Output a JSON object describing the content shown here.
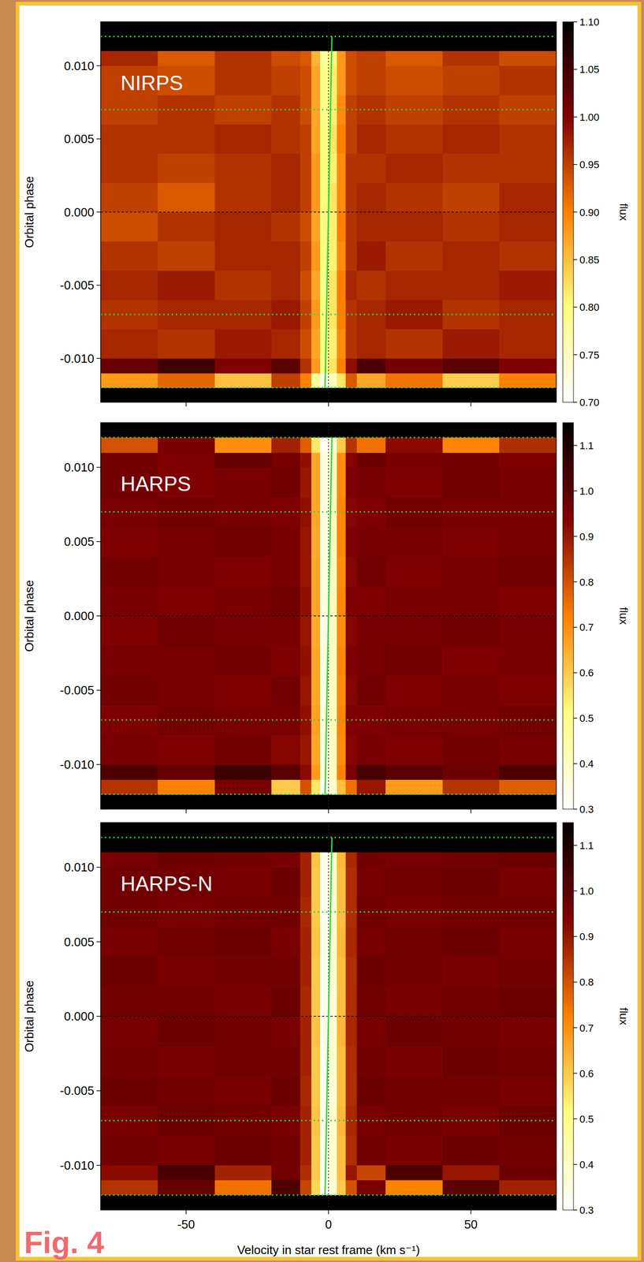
{
  "figure_label": "Fig. 4",
  "chart_data": [
    {
      "type": "heatmap",
      "title": "NIRPS",
      "y_label": "Orbital phase",
      "tick_labels": "y",
      "xlim": [
        -80,
        80
      ],
      "xticks": [
        -50,
        0,
        50
      ],
      "ylim": [
        -0.013,
        0.013
      ],
      "yticks": [
        {
          "value": -0.01,
          "label": "-0.010"
        },
        {
          "value": -0.005,
          "label": "-0.005"
        },
        {
          "value": 0,
          "label": "0.000"
        },
        {
          "value": 0.005,
          "label": "0.005"
        },
        {
          "value": 0.01,
          "label": "0.010"
        }
      ],
      "velocity_edges": [
        -80,
        -60,
        -40,
        -20,
        -10,
        -6,
        -3,
        0,
        3,
        6,
        10,
        20,
        40,
        60,
        80
      ],
      "phase_edges": [
        -0.013,
        -0.012,
        -0.011,
        -0.01,
        -0.008,
        -0.006,
        -0.004,
        -0.002,
        0,
        0.002,
        0.004,
        0.006,
        0.008,
        0.01,
        0.011,
        0.012,
        0.013
      ],
      "cells": [
        null,
        [
          0.88,
          0.92,
          0.85,
          0.95,
          0.9,
          0.78,
          0.72,
          0.75,
          0.82,
          0.93,
          0.87,
          0.91,
          0.84,
          0.9
        ],
        [
          1.02,
          1.05,
          1.0,
          1.03,
          0.96,
          0.88,
          0.8,
          0.82,
          0.9,
          0.99,
          1.04,
          1.01,
          1.03,
          1.0
        ],
        [
          0.97,
          0.96,
          0.98,
          0.97,
          0.94,
          0.87,
          0.8,
          0.81,
          0.89,
          0.96,
          0.97,
          0.96,
          0.98,
          0.97
        ],
        [
          0.96,
          0.97,
          0.97,
          0.98,
          0.95,
          0.88,
          0.8,
          0.82,
          0.9,
          0.96,
          0.97,
          0.98,
          0.96,
          0.97
        ],
        [
          0.97,
          0.98,
          0.96,
          0.97,
          0.94,
          0.87,
          0.79,
          0.82,
          0.9,
          0.97,
          0.96,
          0.97,
          0.97,
          0.98
        ],
        [
          0.96,
          0.95,
          0.97,
          0.97,
          0.95,
          0.88,
          0.8,
          0.81,
          0.89,
          0.96,
          0.98,
          0.96,
          0.97,
          0.96
        ],
        [
          0.94,
          0.96,
          0.97,
          0.96,
          0.94,
          0.87,
          0.8,
          0.81,
          0.9,
          0.96,
          0.97,
          0.97,
          0.96,
          0.97
        ],
        [
          0.95,
          0.93,
          0.96,
          0.97,
          0.95,
          0.88,
          0.8,
          0.82,
          0.89,
          0.96,
          0.97,
          0.96,
          0.95,
          0.97
        ],
        [
          0.96,
          0.95,
          0.96,
          0.97,
          0.95,
          0.88,
          0.8,
          0.81,
          0.89,
          0.96,
          0.96,
          0.97,
          0.96,
          0.96
        ],
        [
          0.96,
          0.96,
          0.97,
          0.96,
          0.95,
          0.87,
          0.8,
          0.82,
          0.9,
          0.95,
          0.97,
          0.96,
          0.97,
          0.96
        ],
        [
          0.95,
          0.96,
          0.95,
          0.96,
          0.94,
          0.87,
          0.79,
          0.81,
          0.89,
          0.95,
          0.96,
          0.95,
          0.96,
          0.95
        ],
        [
          0.95,
          0.94,
          0.96,
          0.95,
          0.94,
          0.87,
          0.79,
          0.81,
          0.88,
          0.94,
          0.95,
          0.94,
          0.95,
          0.96
        ],
        [
          0.97,
          0.93,
          0.96,
          0.94,
          0.93,
          0.86,
          0.78,
          0.8,
          0.88,
          0.94,
          0.95,
          0.93,
          0.96,
          0.94
        ],
        null,
        null
      ],
      "colorbar": {
        "range": [
          0.7,
          1.1
        ],
        "label": "flux",
        "ticks": [
          {
            "value": 0.7,
            "label": "0.70"
          },
          {
            "value": 0.75,
            "label": "0.75"
          },
          {
            "value": 0.8,
            "label": "0.80"
          },
          {
            "value": 0.85,
            "label": "0.85"
          },
          {
            "value": 0.9,
            "label": "0.90"
          },
          {
            "value": 0.95,
            "label": "0.95"
          },
          {
            "value": 1,
            "label": "1.00"
          },
          {
            "value": 1.05,
            "label": "1.05"
          },
          {
            "value": 1.1,
            "label": "1.10"
          }
        ]
      },
      "planet_track": {
        "phase": [
          -0.012,
          0.012
        ],
        "velocity": [
          -1.2,
          1.2
        ]
      },
      "contacts": [
        -0.012,
        -0.007,
        0.007,
        0.012
      ],
      "reference_phase": 0,
      "reference_velocity": 0
    },
    {
      "type": "heatmap",
      "title": "HARPS",
      "y_label": "Orbital phase",
      "tick_labels": "y",
      "xlim": [
        -80,
        80
      ],
      "xticks": [
        -50,
        0,
        50
      ],
      "ylim": [
        -0.013,
        0.013
      ],
      "yticks": [
        {
          "value": -0.01,
          "label": "-0.010"
        },
        {
          "value": -0.005,
          "label": "-0.005"
        },
        {
          "value": 0,
          "label": "0.000"
        },
        {
          "value": 0.005,
          "label": "0.005"
        },
        {
          "value": 0.01,
          "label": "0.010"
        }
      ],
      "velocity_edges": [
        -80,
        -60,
        -40,
        -20,
        -10,
        -6,
        -3,
        0,
        3,
        6,
        10,
        20,
        40,
        60,
        80
      ],
      "phase_edges": [
        -0.013,
        -0.012,
        -0.011,
        -0.01,
        -0.008,
        -0.006,
        -0.004,
        -0.002,
        0,
        0.002,
        0.004,
        0.006,
        0.008,
        0.01,
        0.011,
        0.012,
        0.013
      ],
      "cells": [
        null,
        [
          0.85,
          0.72,
          0.95,
          0.6,
          0.8,
          0.55,
          0.33,
          0.38,
          0.62,
          0.75,
          0.9,
          0.68,
          0.85,
          0.78
        ],
        [
          1.02,
          0.98,
          1.05,
          1.0,
          0.92,
          0.68,
          0.36,
          0.4,
          0.72,
          0.95,
          1.03,
          1.0,
          0.97,
          1.02
        ],
        [
          0.95,
          0.94,
          0.96,
          0.93,
          0.9,
          0.66,
          0.35,
          0.4,
          0.7,
          0.93,
          0.95,
          0.94,
          0.96,
          0.95
        ],
        [
          0.94,
          0.96,
          0.95,
          0.95,
          0.91,
          0.67,
          0.36,
          0.41,
          0.71,
          0.94,
          0.94,
          0.95,
          0.95,
          0.96
        ],
        [
          0.96,
          0.95,
          0.94,
          0.96,
          0.9,
          0.66,
          0.35,
          0.4,
          0.7,
          0.93,
          0.96,
          0.94,
          0.95,
          0.94
        ],
        [
          0.95,
          0.95,
          0.96,
          0.94,
          0.91,
          0.66,
          0.35,
          0.4,
          0.71,
          0.94,
          0.95,
          0.96,
          0.94,
          0.95
        ],
        [
          0.94,
          0.96,
          0.95,
          0.95,
          0.9,
          0.65,
          0.34,
          0.4,
          0.7,
          0.93,
          0.95,
          0.95,
          0.96,
          0.95
        ],
        [
          0.95,
          0.94,
          0.95,
          0.96,
          0.91,
          0.66,
          0.35,
          0.41,
          0.71,
          0.94,
          0.94,
          0.95,
          0.95,
          0.94
        ],
        [
          0.96,
          0.95,
          0.94,
          0.95,
          0.9,
          0.66,
          0.35,
          0.4,
          0.7,
          0.93,
          0.96,
          0.94,
          0.95,
          0.96
        ],
        [
          0.94,
          0.95,
          0.96,
          0.95,
          0.9,
          0.65,
          0.35,
          0.4,
          0.71,
          0.94,
          0.95,
          0.95,
          0.94,
          0.95
        ],
        [
          0.95,
          0.96,
          0.95,
          0.94,
          0.91,
          0.66,
          0.35,
          0.41,
          0.71,
          0.93,
          0.94,
          0.96,
          0.95,
          0.95
        ],
        [
          0.96,
          0.94,
          0.95,
          0.96,
          0.9,
          0.66,
          0.35,
          0.4,
          0.7,
          0.94,
          0.95,
          0.94,
          0.96,
          0.95
        ],
        [
          0.96,
          0.94,
          0.98,
          0.95,
          0.91,
          0.66,
          0.35,
          0.4,
          0.7,
          0.93,
          0.97,
          0.95,
          0.96,
          0.94
        ],
        [
          0.8,
          0.95,
          0.7,
          0.88,
          0.78,
          0.55,
          0.32,
          0.37,
          0.6,
          0.85,
          0.75,
          0.92,
          0.72,
          0.86
        ],
        null
      ],
      "colorbar": {
        "range": [
          0.3,
          1.15
        ],
        "label": "flux",
        "ticks": [
          0.3,
          0.4,
          0.5,
          0.6,
          0.7,
          0.8,
          0.9,
          {
            "value": 1,
            "label": "1.0"
          },
          1.1
        ]
      },
      "planet_track": {
        "phase": [
          -0.012,
          0.012
        ],
        "velocity": [
          -1.2,
          1.2
        ]
      },
      "contacts": [
        -0.012,
        -0.007,
        0.007,
        0.012
      ],
      "reference_phase": 0,
      "reference_velocity": 0
    },
    {
      "type": "heatmap",
      "title": "HARPS-N",
      "y_label": "Orbital phase",
      "x_label": "Velocity in star rest frame (km s⁻¹)",
      "xlim": [
        -80,
        80
      ],
      "xticks": [
        -50,
        0,
        50
      ],
      "ylim": [
        -0.013,
        0.013
      ],
      "yticks": [
        {
          "value": -0.01,
          "label": "-0.010"
        },
        {
          "value": -0.005,
          "label": "-0.005"
        },
        {
          "value": 0,
          "label": "0.000"
        },
        {
          "value": 0.005,
          "label": "0.005"
        },
        {
          "value": 0.01,
          "label": "0.010"
        }
      ],
      "velocity_edges": [
        -80,
        -60,
        -40,
        -20,
        -10,
        -6,
        -3,
        0,
        3,
        6,
        10,
        20,
        40,
        60,
        80
      ],
      "phase_edges": [
        -0.013,
        -0.012,
        -0.011,
        -0.01,
        -0.008,
        -0.006,
        -0.004,
        -0.002,
        0,
        0.002,
        0.004,
        0.006,
        0.008,
        0.01,
        0.011,
        0.012,
        0.013
      ],
      "cells": [
        null,
        [
          0.85,
          0.98,
          0.75,
          1.02,
          0.82,
          0.58,
          0.33,
          0.37,
          0.6,
          0.8,
          0.95,
          0.72,
          1.0,
          0.88
        ],
        [
          0.92,
          1.03,
          0.88,
          0.96,
          0.86,
          0.6,
          0.33,
          0.38,
          0.62,
          0.9,
          0.82,
          1.02,
          0.9,
          0.97
        ],
        [
          0.96,
          0.95,
          0.97,
          0.96,
          0.88,
          0.6,
          0.33,
          0.38,
          0.62,
          0.86,
          0.96,
          0.95,
          0.97,
          0.96
        ],
        [
          0.95,
          0.97,
          0.96,
          0.95,
          0.88,
          0.61,
          0.34,
          0.38,
          0.63,
          0.87,
          0.95,
          0.96,
          0.95,
          0.97
        ],
        [
          0.97,
          0.96,
          0.95,
          0.97,
          0.87,
          0.6,
          0.33,
          0.37,
          0.62,
          0.86,
          0.97,
          0.96,
          0.96,
          0.95
        ],
        [
          0.96,
          0.95,
          0.96,
          0.96,
          0.88,
          0.6,
          0.33,
          0.38,
          0.62,
          0.86,
          0.96,
          0.95,
          0.97,
          0.96
        ],
        [
          0.95,
          0.97,
          0.96,
          0.95,
          0.88,
          0.61,
          0.33,
          0.38,
          0.63,
          0.87,
          0.95,
          0.97,
          0.96,
          0.95
        ],
        [
          0.96,
          0.96,
          0.95,
          0.97,
          0.87,
          0.6,
          0.33,
          0.37,
          0.62,
          0.86,
          0.96,
          0.95,
          0.96,
          0.97
        ],
        [
          0.97,
          0.95,
          0.96,
          0.96,
          0.88,
          0.6,
          0.33,
          0.38,
          0.62,
          0.86,
          0.97,
          0.96,
          0.95,
          0.96
        ],
        [
          0.95,
          0.96,
          0.97,
          0.95,
          0.88,
          0.61,
          0.34,
          0.38,
          0.63,
          0.87,
          0.95,
          0.96,
          0.97,
          0.95
        ],
        [
          0.96,
          0.95,
          0.96,
          0.96,
          0.87,
          0.6,
          0.33,
          0.37,
          0.62,
          0.86,
          0.96,
          0.95,
          0.96,
          0.96
        ],
        [
          0.96,
          0.96,
          0.95,
          0.97,
          0.88,
          0.6,
          0.33,
          0.38,
          0.62,
          0.86,
          0.95,
          0.96,
          0.97,
          0.95
        ],
        [
          0.95,
          0.97,
          0.96,
          0.95,
          0.88,
          0.61,
          0.34,
          0.38,
          0.63,
          0.87,
          0.96,
          0.95,
          0.96,
          0.97
        ],
        null,
        null
      ],
      "colorbar": {
        "range": [
          0.3,
          1.15
        ],
        "label": "flux",
        "ticks": [
          0.3,
          0.4,
          0.5,
          0.6,
          0.7,
          0.8,
          0.9,
          {
            "value": 1,
            "label": "1.0"
          },
          1.1
        ]
      },
      "planet_track": {
        "phase": [
          -0.012,
          0.012
        ],
        "velocity": [
          -1.2,
          1.2
        ]
      },
      "contacts": [
        -0.012,
        -0.007,
        0.007,
        0.012
      ],
      "reference_phase": 0,
      "reference_velocity": 0
    }
  ]
}
